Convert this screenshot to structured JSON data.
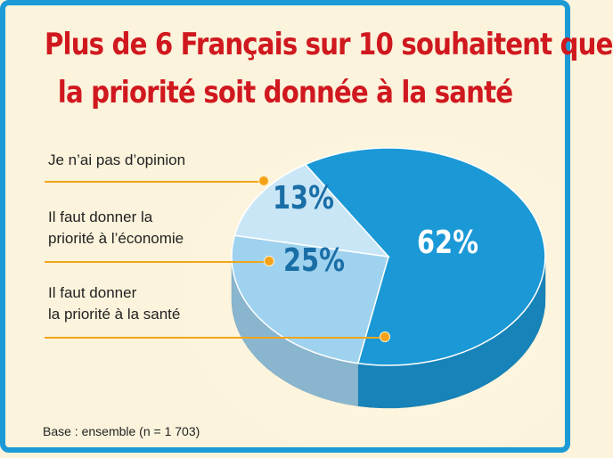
{
  "title_line1": "Plus de 6 Français sur 10 souhaitent que",
  "title_line2": "la priorité soit donnée à la santé",
  "chart_data": {
    "type": "pie",
    "title": "Plus de 6 Français sur 10 souhaitent que la priorité soit donnée à la santé",
    "slices": [
      {
        "label": "Il faut donner la priorité à la santé",
        "value": 62,
        "value_label": "62%",
        "color": "#1b98d6"
      },
      {
        "label": "Il faut donner la priorité à l’économie",
        "value": 25,
        "value_label": "25%",
        "color": "#9fd2ef"
      },
      {
        "label": "Je n’ai pas d’opinion",
        "value": 13,
        "value_label": "13%",
        "color": "#c8e6f6"
      }
    ]
  },
  "labels": {
    "opinion": "Je n’ai pas d’opinion",
    "economie_line1": "Il faut donner la",
    "economie_line2": "priorité à l’économie",
    "sante_line1": "Il faut donner",
    "sante_line2": "la priorité à la santé"
  },
  "footnote": "Base : ensemble (n = 1 703)",
  "colors": {
    "title": "#d0181f",
    "frame": "#1b9ad6",
    "leader": "#f2a51a",
    "background": "#fbf3dc"
  }
}
